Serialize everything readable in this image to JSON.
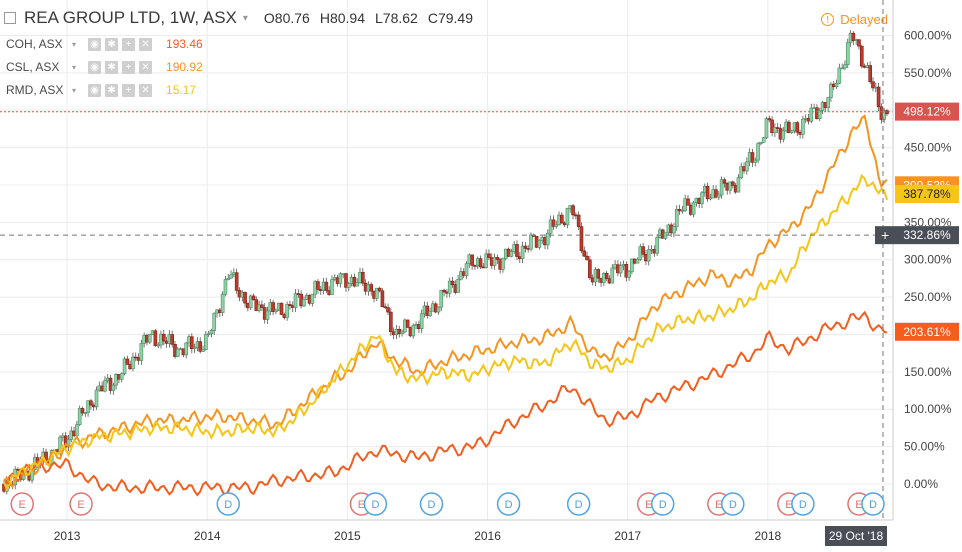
{
  "header": {
    "title": "REA GROUP LTD, 1W, ASX",
    "open": "O80.76",
    "high": "H80.94",
    "low": "L78.62",
    "close": "C79.49",
    "delayed": "Delayed"
  },
  "legend": [
    {
      "symbol": "COH, ASX",
      "value": "193.46",
      "color": "#f45d1e"
    },
    {
      "symbol": "CSL, ASX",
      "value": "190.92",
      "color": "#f7931e"
    },
    {
      "symbol": "RMD, ASX",
      "value": "15.17",
      "color": "#f5c518"
    }
  ],
  "colors": {
    "up_candle": "#8ed3a6",
    "down_candle": "#c0392b",
    "rea_price_line": "#d9534f",
    "crosshair_label": "#4a4f57",
    "date_label": "#4a4f57"
  },
  "chart_data": {
    "type": "line",
    "title": "REA GROUP LTD, 1W, ASX",
    "x": [
      2012.55,
      2012.7,
      2012.85,
      2013.0,
      2013.2,
      2013.4,
      2013.6,
      2013.8,
      2014.0,
      2014.15,
      2014.3,
      2014.5,
      2014.7,
      2014.9,
      2015.0,
      2015.2,
      2015.35,
      2015.5,
      2015.7,
      2015.9,
      2016.0,
      2016.2,
      2016.4,
      2016.6,
      2016.75,
      2016.85,
      2017.0,
      2017.2,
      2017.4,
      2017.6,
      2017.75,
      2017.9,
      2018.0,
      2018.15,
      2018.3,
      2018.45,
      2018.6,
      2018.7,
      2018.8
    ],
    "ylim": [
      -20,
      625
    ],
    "yticks": [
      "0.00%",
      "50.00%",
      "100.00%",
      "150.00%",
      "200.00%",
      "250.00%",
      "300.00%",
      "350.00%",
      "400.00%",
      "450.00%",
      "500.00%",
      "550.00%",
      "600.00%"
    ],
    "xticks": [
      "2013",
      "2014",
      "2015",
      "2016",
      "2017",
      "2018"
    ],
    "x_date_label": "29 Oct '18",
    "crosshair_label": "332.86%",
    "grid": true,
    "series": [
      {
        "name": "REA GROUP LTD, 1W, ASX",
        "last_label": "498.12%",
        "values": [
          0,
          15,
          35,
          60,
          120,
          150,
          200,
          180,
          190,
          280,
          240,
          230,
          250,
          270,
          275,
          260,
          200,
          215,
          255,
          300,
          295,
          310,
          330,
          370,
          270,
          280,
          290,
          320,
          370,
          390,
          400,
          440,
          480,
          470,
          490,
          520,
          600,
          560,
          498
        ]
      },
      {
        "name": "COH, ASX",
        "last_label": "203.61%",
        "values": [
          0,
          20,
          25,
          25,
          0,
          -5,
          -5,
          -5,
          -5,
          -5,
          -5,
          5,
          10,
          15,
          25,
          45,
          40,
          35,
          45,
          50,
          60,
          85,
          105,
          130,
          100,
          85,
          90,
          115,
          130,
          145,
          160,
          175,
          195,
          180,
          195,
          210,
          220,
          225,
          204
        ]
      },
      {
        "name": "CSL, ASX",
        "last_label": "399.53%",
        "values": [
          0,
          15,
          30,
          50,
          65,
          75,
          85,
          85,
          90,
          90,
          85,
          80,
          110,
          140,
          150,
          190,
          165,
          150,
          165,
          175,
          180,
          190,
          195,
          215,
          175,
          170,
          190,
          240,
          260,
          280,
          270,
          290,
          320,
          340,
          370,
          420,
          470,
          490,
          400
        ]
      },
      {
        "name": "RMD, ASX",
        "last_label": "387.78%",
        "values": [
          0,
          18,
          32,
          48,
          62,
          68,
          75,
          75,
          70,
          70,
          75,
          70,
          100,
          140,
          160,
          200,
          150,
          140,
          150,
          145,
          155,
          165,
          160,
          190,
          160,
          155,
          165,
          205,
          220,
          225,
          235,
          250,
          270,
          280,
          330,
          360,
          390,
          410,
          388
        ]
      }
    ]
  }
}
